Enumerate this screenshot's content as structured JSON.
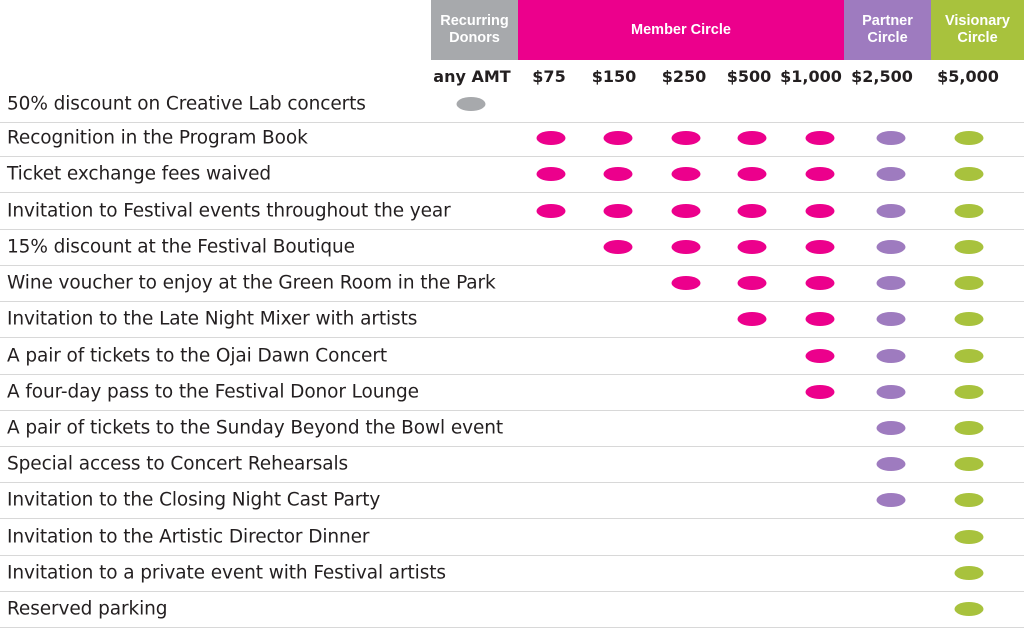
{
  "headers": {
    "recurring": [
      "Recurring",
      "Donors"
    ],
    "member": "Member Circle",
    "partner": [
      "Partner",
      "Circle"
    ],
    "visionary": [
      "Visionary",
      "Circle"
    ]
  },
  "amounts": [
    "any AMT",
    "$75",
    "$150",
    "$250",
    "$500",
    "$1,000",
    "$2,500",
    "$5,000"
  ],
  "colors": {
    "recurring": "#a7a9ac",
    "member": "#ec008c",
    "partner": "#9e7bbf",
    "visionary": "#a8c23d"
  },
  "benefits": [
    {
      "label": "50% discount on Creative Lab concerts",
      "tiers": [
        true,
        false,
        false,
        false,
        false,
        false,
        false,
        false
      ]
    },
    {
      "label": "Recognition in the Program Book",
      "tiers": [
        false,
        true,
        true,
        true,
        true,
        true,
        true,
        true
      ]
    },
    {
      "label": "Ticket exchange fees waived",
      "tiers": [
        false,
        true,
        true,
        true,
        true,
        true,
        true,
        true
      ]
    },
    {
      "label": "Invitation to Festival events throughout the year",
      "tiers": [
        false,
        true,
        true,
        true,
        true,
        true,
        true,
        true
      ]
    },
    {
      "label": "15% discount at the Festival Boutique",
      "tiers": [
        false,
        false,
        true,
        true,
        true,
        true,
        true,
        true
      ]
    },
    {
      "label": "Wine voucher to enjoy at the Green Room in the Park",
      "tiers": [
        false,
        false,
        false,
        true,
        true,
        true,
        true,
        true
      ]
    },
    {
      "label": "Invitation to the Late Night Mixer with artists",
      "tiers": [
        false,
        false,
        false,
        false,
        true,
        true,
        true,
        true
      ]
    },
    {
      "label": "A pair of tickets to the Ojai Dawn Concert",
      "tiers": [
        false,
        false,
        false,
        false,
        false,
        true,
        true,
        true
      ]
    },
    {
      "label": "A four-day pass to the Festival Donor Lounge",
      "tiers": [
        false,
        false,
        false,
        false,
        false,
        true,
        true,
        true
      ]
    },
    {
      "label": "A pair of tickets to the Sunday Beyond the Bowl event",
      "tiers": [
        false,
        false,
        false,
        false,
        false,
        false,
        true,
        true
      ]
    },
    {
      "label": "Special access to Concert Rehearsals",
      "tiers": [
        false,
        false,
        false,
        false,
        false,
        false,
        true,
        true
      ]
    },
    {
      "label": "Invitation to the Closing Night Cast Party",
      "tiers": [
        false,
        false,
        false,
        false,
        false,
        false,
        true,
        true
      ]
    },
    {
      "label": "Invitation to the Artistic Director Dinner",
      "tiers": [
        false,
        false,
        false,
        false,
        false,
        false,
        false,
        true
      ]
    },
    {
      "label": "Invitation to a private event with Festival artists",
      "tiers": [
        false,
        false,
        false,
        false,
        false,
        false,
        false,
        true
      ]
    },
    {
      "label": "Reserved parking",
      "tiers": [
        false,
        false,
        false,
        false,
        false,
        false,
        false,
        true
      ]
    }
  ]
}
